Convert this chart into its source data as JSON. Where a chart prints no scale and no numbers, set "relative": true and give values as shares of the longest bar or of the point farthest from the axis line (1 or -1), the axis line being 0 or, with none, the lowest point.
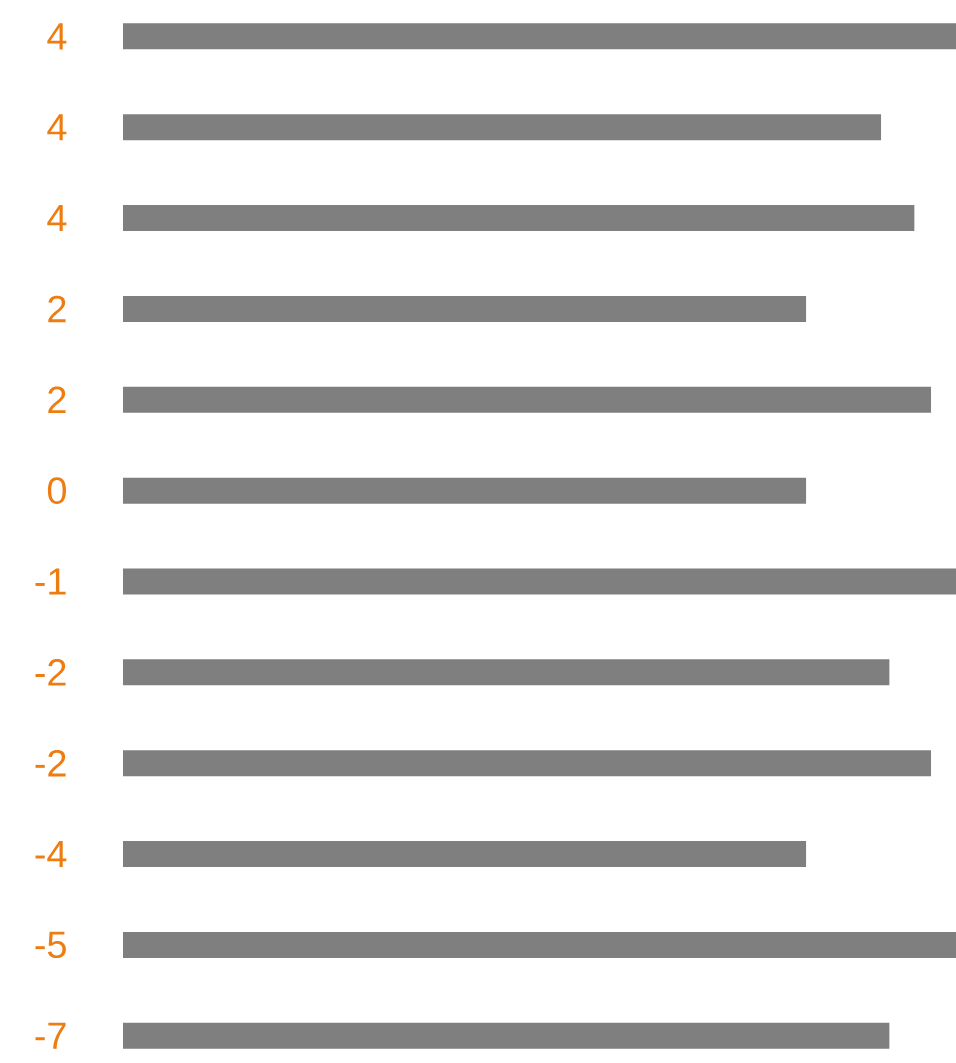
{
  "chart_data": {
    "type": "bar",
    "orientation": "horizontal",
    "relative": true,
    "color": "#7f7f7f",
    "categories": [
      "4",
      "4",
      "4",
      "2",
      "2",
      "0",
      "-1",
      "-2",
      "-2",
      "-4",
      "-5",
      "-7"
    ],
    "values": [
      1,
      0.91,
      0.95,
      0.82,
      0.97,
      0.82,
      1,
      0.92,
      0.97,
      0.82,
      1,
      0.92
    ]
  }
}
